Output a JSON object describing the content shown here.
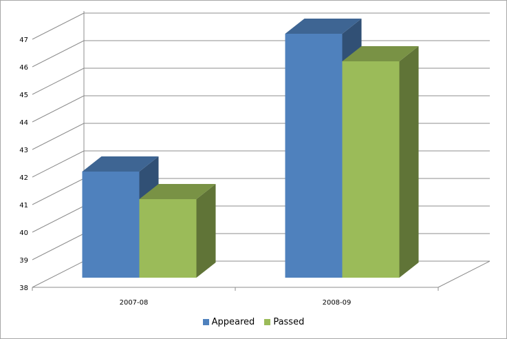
{
  "chart_data": {
    "type": "bar",
    "categories": [
      "2007-08",
      "2008-09"
    ],
    "series": [
      {
        "name": "Appeared",
        "values": [
          42,
          47
        ],
        "color": "#4f81bd"
      },
      {
        "name": "Passed",
        "values": [
          41,
          46
        ],
        "color": "#9bbb59"
      }
    ],
    "ylim": [
      38,
      47
    ],
    "yticks": [
      "38",
      "39",
      "40",
      "41",
      "42",
      "43",
      "44",
      "45",
      "46",
      "47"
    ],
    "grid": true,
    "three_d": true,
    "legend_position": "bottom"
  }
}
